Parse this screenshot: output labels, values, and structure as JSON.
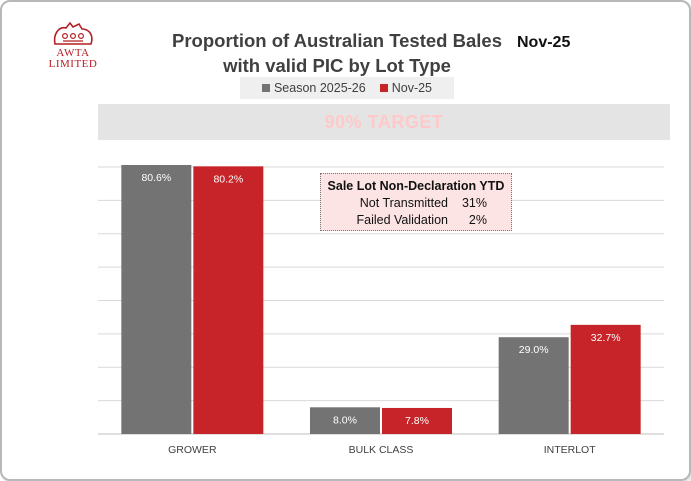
{
  "logo": {
    "line1": "AWTA",
    "line2": "LIMITED",
    "icon": "awta-crest-icon"
  },
  "title": {
    "line1": "Proportion of Australian Tested Bales",
    "line2": "with valid PIC by Lot Type"
  },
  "period": "Nov-25",
  "target": {
    "label": "90% TARGET",
    "value": 90
  },
  "colors": {
    "season": "#737373",
    "month": "#c62428",
    "target_text": "#ffc9c9",
    "band": "#e4e4e4",
    "box": "#fce4e4"
  },
  "annotation": {
    "title": "Sale Lot Non-Declaration YTD",
    "rows": [
      {
        "label": "Not Transmitted",
        "value": "31%"
      },
      {
        "label": "Failed Validation",
        "value": "2%"
      }
    ]
  },
  "chart_data": {
    "type": "bar",
    "title": "Proportion of Australian Tested Bales with valid PIC by Lot Type",
    "categories": [
      "GROWER",
      "BULK CLASS",
      "INTERLOT"
    ],
    "series": [
      {
        "name": "Season 2025-26",
        "values": [
          80.6,
          8.0,
          29.0
        ],
        "labels": [
          "80.6%",
          "8.0%",
          "29.0%"
        ]
      },
      {
        "name": "Nov-25",
        "values": [
          80.2,
          7.8,
          32.7
        ],
        "labels": [
          "80.2%",
          "7.8%",
          "32.7%"
        ]
      }
    ],
    "ylim": [
      0,
      80
    ],
    "grid": true,
    "xlabel": "",
    "ylabel": "",
    "legend": "top-center"
  }
}
